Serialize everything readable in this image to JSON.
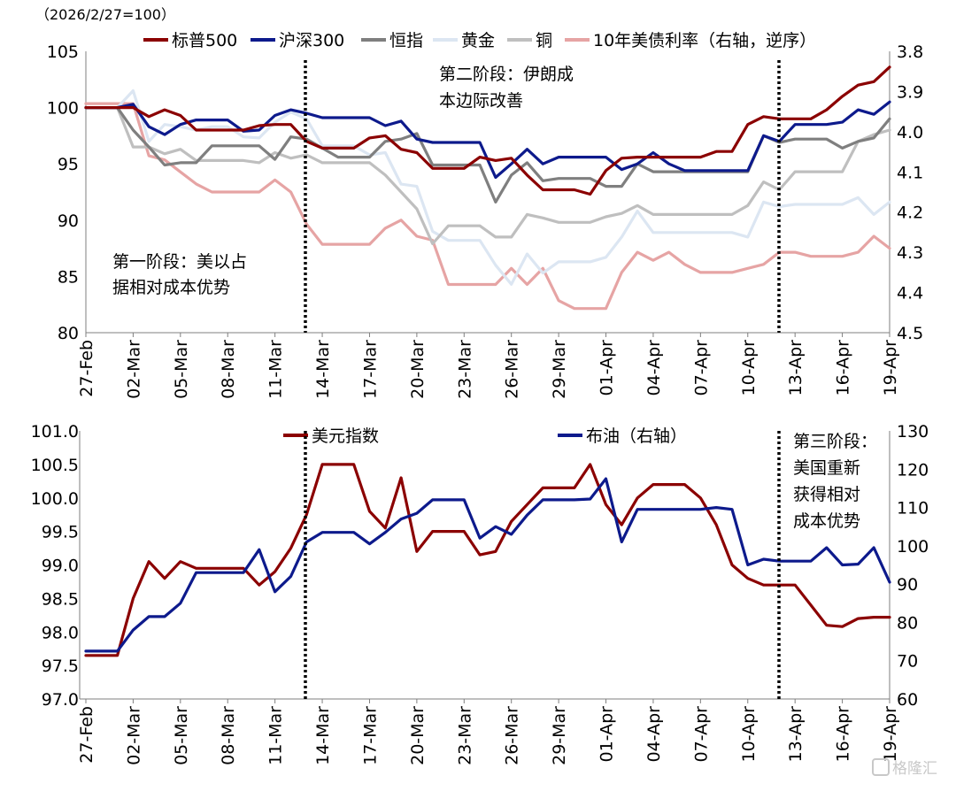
{
  "chart_data": [
    {
      "type": "line",
      "note": "（2026/2/27=100）",
      "x": [
        "27-Feb",
        "28-Feb",
        "01-Mar",
        "02-Mar",
        "03-Mar",
        "04-Mar",
        "05-Mar",
        "06-Mar",
        "07-Mar",
        "08-Mar",
        "09-Mar",
        "10-Mar",
        "11-Mar",
        "12-Mar",
        "13-Mar",
        "14-Mar",
        "15-Mar",
        "16-Mar",
        "17-Mar",
        "18-Mar",
        "19-Mar",
        "20-Mar",
        "21-Mar",
        "22-Mar",
        "23-Mar",
        "24-Mar",
        "25-Mar",
        "26-Mar",
        "27-Mar",
        "28-Mar",
        "29-Mar",
        "30-Mar",
        "31-Mar",
        "01-Apr",
        "02-Apr",
        "03-Apr",
        "04-Apr",
        "05-Apr",
        "06-Apr",
        "07-Apr",
        "08-Apr",
        "09-Apr",
        "10-Apr",
        "11-Apr",
        "12-Apr",
        "13-Apr",
        "14-Apr",
        "15-Apr",
        "16-Apr",
        "17-Apr",
        "18-Apr",
        "19-Apr"
      ],
      "xticks": [
        "27-Feb",
        "02-Mar",
        "05-Mar",
        "08-Mar",
        "11-Mar",
        "14-Mar",
        "17-Mar",
        "20-Mar",
        "23-Mar",
        "26-Mar",
        "29-Mar",
        "01-Apr",
        "04-Apr",
        "07-Apr",
        "10-Apr",
        "13-Apr",
        "16-Apr",
        "19-Apr"
      ],
      "ylim": [
        80,
        105
      ],
      "yticks": [
        "80",
        "85",
        "90",
        "95",
        "100",
        "105"
      ],
      "y2lim": [
        3.8,
        4.5
      ],
      "y2_reversed": true,
      "y2ticks": [
        "3.8",
        "3.9",
        "4.0",
        "4.1",
        "4.2",
        "4.3",
        "4.4",
        "4.5"
      ],
      "series": [
        {
          "name": "标普500",
          "color": "#8b0000",
          "axis": "left",
          "values": [
            100,
            100,
            100,
            100,
            99.2,
            99.8,
            99.3,
            98.0,
            98.0,
            98.0,
            98.0,
            98.4,
            98.5,
            98.5,
            97.0,
            96.4,
            96.4,
            96.4,
            97.3,
            97.5,
            96.3,
            96.0,
            94.6,
            94.6,
            94.6,
            95.6,
            95.3,
            95.5,
            94.0,
            92.7,
            92.7,
            92.7,
            92.3,
            94.4,
            95.5,
            95.6,
            95.6,
            95.6,
            95.6,
            95.6,
            96.1,
            96.1,
            98.5,
            99.2,
            99.0,
            99.0,
            99.0,
            99.8,
            101.0,
            102.0,
            102.3,
            103.6
          ]
        },
        {
          "name": "沪深300",
          "color": "#0d1a8c",
          "axis": "left",
          "values": [
            100,
            100,
            100,
            100.3,
            98.3,
            97.6,
            98.5,
            98.9,
            98.9,
            98.9,
            97.9,
            98.0,
            99.3,
            99.8,
            99.5,
            99.1,
            99.1,
            99.1,
            99.1,
            98.4,
            98.8,
            97.2,
            96.9,
            96.9,
            96.9,
            96.9,
            93.8,
            95.0,
            96.3,
            95.0,
            95.6,
            95.6,
            95.6,
            95.6,
            94.5,
            95.0,
            96.0,
            95.0,
            94.4,
            94.4,
            94.4,
            94.4,
            94.4,
            97.5,
            97.0,
            98.5,
            98.5,
            98.5,
            98.7,
            99.8,
            99.4,
            100.5
          ]
        },
        {
          "name": "恒指",
          "color": "#7f7f7f",
          "axis": "left",
          "values": [
            100,
            100,
            100,
            98.0,
            96.5,
            94.9,
            95.1,
            95.1,
            96.6,
            96.6,
            96.6,
            96.6,
            95.4,
            97.4,
            97.2,
            96.4,
            95.6,
            95.6,
            95.6,
            97.0,
            97.2,
            97.7,
            94.9,
            94.9,
            94.9,
            94.9,
            91.6,
            94.0,
            95.1,
            93.5,
            93.7,
            93.7,
            93.7,
            93.0,
            93.0,
            95.0,
            94.3,
            94.3,
            94.3,
            94.3,
            94.3,
            94.3,
            94.3,
            97.5,
            96.9,
            97.2,
            97.2,
            97.2,
            96.4,
            97.0,
            97.3,
            99.0
          ]
        },
        {
          "name": "黄金",
          "color": "#dce6f2",
          "axis": "left",
          "values": [
            100,
            100,
            100,
            101.5,
            97.0,
            98.5,
            98.3,
            98.0,
            98.3,
            98.3,
            97.4,
            97.3,
            98.7,
            99.6,
            99.0,
            96.6,
            96.6,
            96.6,
            95.8,
            96.0,
            93.2,
            93.0,
            89.0,
            88.2,
            88.2,
            88.2,
            86.0,
            84.3,
            87.0,
            85.3,
            86.3,
            86.3,
            86.3,
            86.7,
            88.5,
            90.8,
            88.9,
            88.9,
            88.9,
            88.9,
            88.9,
            88.9,
            88.5,
            91.6,
            91.2,
            91.4,
            91.4,
            91.4,
            91.4,
            92.0,
            90.5,
            91.6
          ]
        },
        {
          "name": "铜",
          "color": "#bfbfbf",
          "axis": "left",
          "values": [
            100,
            100,
            100,
            96.5,
            96.5,
            95.9,
            96.3,
            95.3,
            95.3,
            95.3,
            95.3,
            95.1,
            96.0,
            95.5,
            95.8,
            95.1,
            95.1,
            95.1,
            95.1,
            94.0,
            92.5,
            91.0,
            87.9,
            89.5,
            89.5,
            89.5,
            88.5,
            88.5,
            90.5,
            90.2,
            89.8,
            89.8,
            89.8,
            90.3,
            90.6,
            91.3,
            90.5,
            90.5,
            90.5,
            90.5,
            90.5,
            90.5,
            91.3,
            93.4,
            92.7,
            94.3,
            94.3,
            94.3,
            94.3,
            97.0,
            97.6,
            98.0
          ]
        },
        {
          "name": "10年美债利率（右轴，逆序）",
          "color": "#e6a4a4",
          "axis": "right",
          "values": [
            3.93,
            3.93,
            3.93,
            3.93,
            4.06,
            4.07,
            4.1,
            4.13,
            4.15,
            4.15,
            4.15,
            4.15,
            4.12,
            4.15,
            4.23,
            4.28,
            4.28,
            4.28,
            4.28,
            4.24,
            4.22,
            4.26,
            4.27,
            4.38,
            4.38,
            4.38,
            4.38,
            4.34,
            4.38,
            4.34,
            4.42,
            4.44,
            4.44,
            4.44,
            4.35,
            4.3,
            4.32,
            4.3,
            4.33,
            4.35,
            4.35,
            4.35,
            4.34,
            4.33,
            4.3,
            4.3,
            4.31,
            4.31,
            4.31,
            4.3,
            4.26,
            4.29
          ]
        }
      ],
      "annotations": [
        "第一阶段：美以占据相对成本优势",
        "第二阶段：伊朗成本边际改善"
      ]
    },
    {
      "type": "line",
      "x": [
        "27-Feb",
        "28-Feb",
        "01-Mar",
        "02-Mar",
        "03-Mar",
        "04-Mar",
        "05-Mar",
        "06-Mar",
        "07-Mar",
        "08-Mar",
        "09-Mar",
        "10-Mar",
        "11-Mar",
        "12-Mar",
        "13-Mar",
        "14-Mar",
        "15-Mar",
        "16-Mar",
        "17-Mar",
        "18-Mar",
        "19-Mar",
        "20-Mar",
        "21-Mar",
        "22-Mar",
        "23-Mar",
        "24-Mar",
        "25-Mar",
        "26-Mar",
        "27-Mar",
        "28-Mar",
        "29-Mar",
        "30-Mar",
        "31-Mar",
        "01-Apr",
        "02-Apr",
        "03-Apr",
        "04-Apr",
        "05-Apr",
        "06-Apr",
        "07-Apr",
        "08-Apr",
        "09-Apr",
        "10-Apr",
        "11-Apr",
        "12-Apr",
        "13-Apr",
        "14-Apr",
        "15-Apr",
        "16-Apr",
        "17-Apr",
        "18-Apr",
        "19-Apr"
      ],
      "xticks": [
        "27-Feb",
        "02-Mar",
        "05-Mar",
        "08-Mar",
        "11-Mar",
        "14-Mar",
        "17-Mar",
        "20-Mar",
        "23-Mar",
        "26-Mar",
        "29-Mar",
        "01-Apr",
        "04-Apr",
        "07-Apr",
        "10-Apr",
        "13-Apr",
        "16-Apr",
        "19-Apr"
      ],
      "ylim": [
        97.0,
        101.0
      ],
      "yticks": [
        "97.0",
        "97.5",
        "98.0",
        "98.5",
        "99.0",
        "99.5",
        "100.0",
        "100.5",
        "101.0"
      ],
      "y2lim": [
        60,
        130
      ],
      "y2ticks": [
        "60",
        "70",
        "80",
        "90",
        "100",
        "110",
        "120",
        "130"
      ],
      "series": [
        {
          "name": "美元指数",
          "color": "#8b0000",
          "axis": "left",
          "values": [
            97.65,
            97.65,
            97.65,
            98.5,
            99.05,
            98.8,
            99.05,
            98.95,
            98.95,
            98.95,
            98.95,
            98.7,
            98.9,
            99.25,
            99.75,
            100.5,
            100.5,
            100.5,
            99.8,
            99.55,
            100.3,
            99.2,
            99.5,
            99.5,
            99.5,
            99.15,
            99.2,
            99.65,
            99.9,
            100.15,
            100.15,
            100.15,
            100.5,
            99.9,
            99.6,
            100.0,
            100.2,
            100.2,
            100.2,
            100.0,
            99.6,
            99.0,
            98.8,
            98.7,
            98.7,
            98.7,
            98.4,
            98.1,
            98.08,
            98.2,
            98.22,
            98.22
          ]
        },
        {
          "name": "布油（右轴）",
          "color": "#0d1a8c",
          "axis": "right",
          "values": [
            72.5,
            72.5,
            72.5,
            78.0,
            81.5,
            81.5,
            85.0,
            93.0,
            93.0,
            93.0,
            93.0,
            99.0,
            88.0,
            92.0,
            101.0,
            103.5,
            103.5,
            103.5,
            100.5,
            103.5,
            107.0,
            108.5,
            112.0,
            112.0,
            112.0,
            102.0,
            105.0,
            103.0,
            108.0,
            112.0,
            112.0,
            112.0,
            112.2,
            117.5,
            101.0,
            109.5,
            109.5,
            109.5,
            109.5,
            109.5,
            110.0,
            109.5,
            95.0,
            96.5,
            96.0,
            96.0,
            96.0,
            99.5,
            95.0,
            95.2,
            99.5,
            90.5
          ]
        }
      ],
      "annotations": [
        "第三阶段：美国重新获得相对成本优势"
      ]
    }
  ],
  "top": {
    "note": "（2026/2/27=100）",
    "legend": [
      "标普500",
      "沪深300",
      "恒指",
      "黄金",
      "铜",
      "10年美债利率（右轴，逆序）"
    ],
    "phase1": [
      "第一阶段：美以占",
      "据相对成本优势"
    ],
    "phase2": [
      "第二阶段：伊朗成",
      "本边际改善"
    ]
  },
  "bottom": {
    "legend": [
      "美元指数",
      "布油（右轴）"
    ],
    "phase3": [
      "第三阶段：",
      "美国重新",
      "获得相对",
      "成本优势"
    ]
  },
  "watermark": "格隆汇"
}
